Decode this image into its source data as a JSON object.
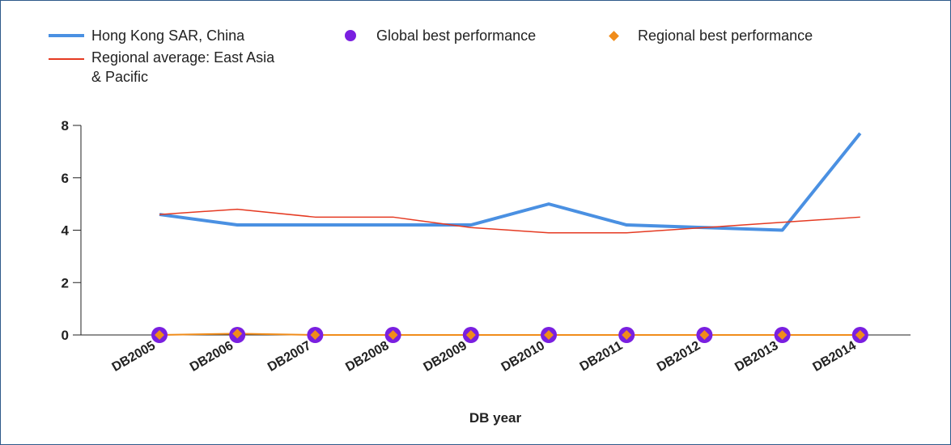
{
  "chart_data": {
    "type": "line",
    "title": "",
    "xlabel": "DB year",
    "ylabel": "",
    "ylim": [
      0,
      8
    ],
    "yticks": [
      "0",
      "2",
      "4",
      "6",
      "8"
    ],
    "categories": [
      "DB2005",
      "DB2006",
      "DB2007",
      "DB2008",
      "DB2009",
      "DB2010",
      "DB2011",
      "DB2012",
      "DB2013",
      "DB2014"
    ],
    "legend_position": "top",
    "grid": false,
    "series": [
      {
        "name": "Hong Kong SAR, China",
        "color": "#4a90e2",
        "style": "thick-line",
        "values": [
          4.6,
          4.2,
          4.2,
          4.2,
          4.2,
          5.0,
          4.2,
          4.1,
          4.0,
          7.7
        ]
      },
      {
        "name": "Regional average: East Asia & Pacific",
        "color": "#e53a22",
        "style": "thin-line",
        "values": [
          4.6,
          4.8,
          4.5,
          4.5,
          4.1,
          3.9,
          3.9,
          4.1,
          4.3,
          4.5
        ]
      },
      {
        "name": "Global best performance",
        "color": "#7a1fe0",
        "style": "circle-markers",
        "values": [
          0,
          0,
          0,
          0,
          0,
          0,
          0,
          0,
          0,
          0
        ]
      },
      {
        "name": "Regional best performance",
        "color": "#f08c1a",
        "style": "diamond-markers",
        "values": [
          0,
          0.05,
          0,
          0,
          0,
          0,
          0,
          0,
          0,
          0
        ]
      }
    ]
  },
  "legend": {
    "item1": "Hong Kong SAR, China",
    "item2": "Global best performance",
    "item3": "Regional best performance",
    "item4_line1": "Regional average: East Asia",
    "item4_line2": "& Pacific"
  }
}
